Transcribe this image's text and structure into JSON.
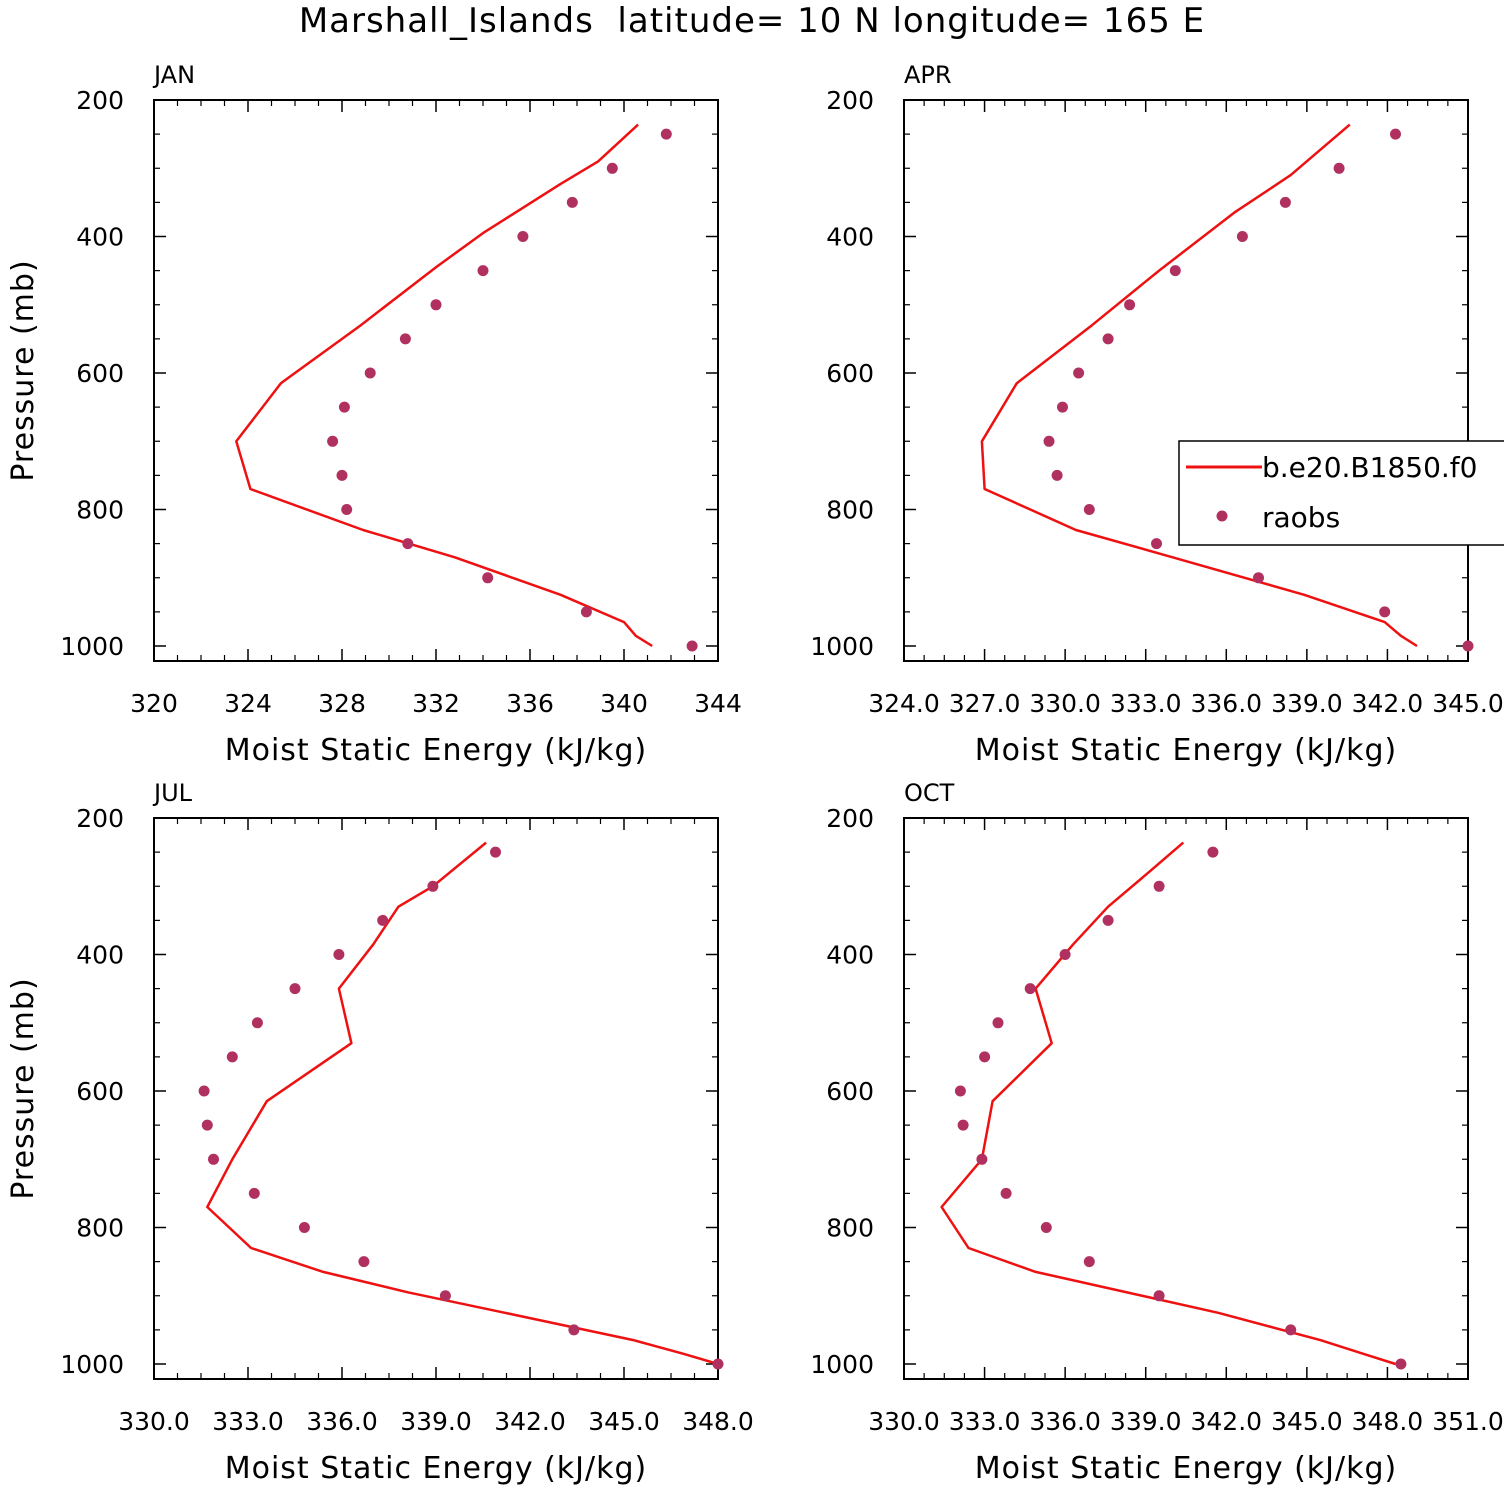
{
  "figure_title": "Marshall_Islands  latitude= 10 N longitude= 165 E",
  "colors": {
    "model": "#ee1111",
    "obs": "#b03060",
    "frame": "#000000"
  },
  "legend": {
    "model_label": "b.e20.B1850.f0",
    "obs_label": "raobs",
    "placement": "right-middle of APR panel"
  },
  "chart_data": [
    {
      "type": "line",
      "title": "JAN",
      "xlabel": "Moist Static Energy (kJ/kg)",
      "ylabel": "Pressure (mb)",
      "xlim": [
        320,
        344
      ],
      "ylim": [
        200,
        1000
      ],
      "y_inverted": true,
      "xtick_values": [
        320,
        324,
        328,
        332,
        336,
        340,
        344
      ],
      "xtick_labels": [
        "320",
        "324",
        "328",
        "332",
        "336",
        "340",
        "344"
      ],
      "ytick_values": [
        200,
        400,
        600,
        800,
        1000
      ],
      "ytick_labels": [
        "200",
        "400",
        "600",
        "800",
        "1000"
      ],
      "series": [
        {
          "name": "b.e20.B1850.f0",
          "kind": "line",
          "p": [
            236,
            290,
            323,
            395,
            445,
            530,
            615,
            700,
            770,
            830,
            870,
            925,
            965,
            985,
            1000
          ],
          "x": [
            340.6,
            338.9,
            337.3,
            334.0,
            332.0,
            328.8,
            325.4,
            323.5,
            324.1,
            328.9,
            332.8,
            337.3,
            340.0,
            340.5,
            341.2
          ]
        },
        {
          "name": "raobs",
          "kind": "scatter",
          "p": [
            250,
            300,
            350,
            400,
            450,
            500,
            550,
            600,
            650,
            700,
            750,
            800,
            850,
            900,
            950,
            1000
          ],
          "x": [
            341.8,
            339.5,
            337.8,
            335.7,
            334.0,
            332.0,
            330.7,
            329.2,
            328.1,
            327.6,
            328.0,
            328.2,
            330.8,
            334.2,
            338.4,
            342.9
          ]
        }
      ]
    },
    {
      "type": "line",
      "title": "APR",
      "xlabel": "Moist Static Energy (kJ/kg)",
      "ylabel": "",
      "xlim": [
        324.0,
        345.0
      ],
      "ylim": [
        200,
        1000
      ],
      "y_inverted": true,
      "xtick_values": [
        324.0,
        327.0,
        330.0,
        333.0,
        336.0,
        339.0,
        342.0,
        345.0
      ],
      "xtick_labels": [
        "324.0",
        "327.0",
        "330.0",
        "333.0",
        "336.0",
        "339.0",
        "342.0",
        "345.0"
      ],
      "ytick_values": [
        200,
        400,
        600,
        800,
        1000
      ],
      "ytick_labels": [
        "200",
        "400",
        "600",
        "800",
        "1000"
      ],
      "series": [
        {
          "name": "b.e20.B1850.f0",
          "kind": "line",
          "p": [
            236,
            310,
            365,
            450,
            530,
            615,
            700,
            770,
            830,
            870,
            925,
            965,
            985,
            1000
          ],
          "x": [
            340.6,
            338.4,
            336.3,
            333.5,
            331.0,
            328.2,
            326.9,
            327.0,
            330.4,
            334.0,
            338.9,
            341.9,
            342.5,
            343.1
          ]
        },
        {
          "name": "raobs",
          "kind": "scatter",
          "p": [
            250,
            300,
            350,
            400,
            450,
            500,
            550,
            600,
            650,
            700,
            750,
            800,
            850,
            900,
            950,
            1000
          ],
          "x": [
            342.3,
            340.2,
            338.2,
            336.6,
            334.1,
            332.4,
            331.6,
            330.5,
            329.9,
            329.4,
            329.7,
            330.9,
            333.4,
            337.2,
            341.9,
            345.0
          ]
        }
      ]
    },
    {
      "type": "line",
      "title": "JUL",
      "xlabel": "Moist Static Energy (kJ/kg)",
      "ylabel": "Pressure (mb)",
      "xlim": [
        330.0,
        348.0
      ],
      "ylim": [
        200,
        1000
      ],
      "y_inverted": true,
      "xtick_values": [
        330.0,
        333.0,
        336.0,
        339.0,
        342.0,
        345.0,
        348.0
      ],
      "xtick_labels": [
        "330.0",
        "333.0",
        "336.0",
        "339.0",
        "342.0",
        "345.0",
        "348.0"
      ],
      "ytick_values": [
        200,
        400,
        600,
        800,
        1000
      ],
      "ytick_labels": [
        "200",
        "400",
        "600",
        "800",
        "1000"
      ],
      "series": [
        {
          "name": "b.e20.B1850.f0",
          "kind": "line",
          "p": [
            236,
            300,
            330,
            385,
            450,
            530,
            615,
            700,
            770,
            830,
            865,
            895,
            925,
            965,
            985,
            1000
          ],
          "x": [
            340.6,
            338.9,
            337.8,
            337.0,
            335.9,
            336.3,
            333.6,
            332.5,
            331.7,
            333.1,
            335.4,
            338.1,
            341.2,
            345.3,
            346.9,
            348.0
          ]
        },
        {
          "name": "raobs",
          "kind": "scatter",
          "p": [
            250,
            300,
            350,
            400,
            450,
            500,
            550,
            600,
            650,
            700,
            750,
            800,
            850,
            900,
            950,
            1000
          ],
          "x": [
            340.9,
            338.9,
            337.3,
            335.9,
            334.5,
            333.3,
            332.5,
            331.6,
            331.7,
            331.9,
            333.2,
            334.8,
            336.7,
            339.3,
            343.4,
            348.0
          ]
        }
      ]
    },
    {
      "type": "line",
      "title": "OCT",
      "xlabel": "Moist Static Energy (kJ/kg)",
      "ylabel": "",
      "xlim": [
        330.0,
        351.0
      ],
      "ylim": [
        200,
        1000
      ],
      "y_inverted": true,
      "xtick_values": [
        330.0,
        333.0,
        336.0,
        339.0,
        342.0,
        345.0,
        348.0,
        351.0
      ],
      "xtick_labels": [
        "330.0",
        "333.0",
        "336.0",
        "339.0",
        "342.0",
        "345.0",
        "348.0",
        "351.0"
      ],
      "ytick_values": [
        200,
        400,
        600,
        800,
        1000
      ],
      "ytick_labels": [
        "200",
        "400",
        "600",
        "800",
        "1000"
      ],
      "series": [
        {
          "name": "b.e20.B1850.f0",
          "kind": "line",
          "p": [
            236,
            280,
            330,
            385,
            450,
            530,
            615,
            700,
            770,
            830,
            865,
            925,
            965,
            985,
            1000
          ],
          "x": [
            340.4,
            339.1,
            337.6,
            336.3,
            334.9,
            335.5,
            333.3,
            332.9,
            331.4,
            332.4,
            334.9,
            341.7,
            345.5,
            347.1,
            348.3
          ]
        },
        {
          "name": "raobs",
          "kind": "scatter",
          "p": [
            250,
            300,
            350,
            400,
            450,
            500,
            550,
            600,
            650,
            700,
            750,
            800,
            850,
            900,
            950,
            1000
          ],
          "x": [
            341.5,
            339.5,
            337.6,
            336.0,
            334.7,
            333.5,
            333.0,
            332.1,
            332.2,
            332.9,
            333.8,
            335.3,
            336.9,
            339.5,
            344.4,
            348.5
          ]
        }
      ]
    }
  ]
}
